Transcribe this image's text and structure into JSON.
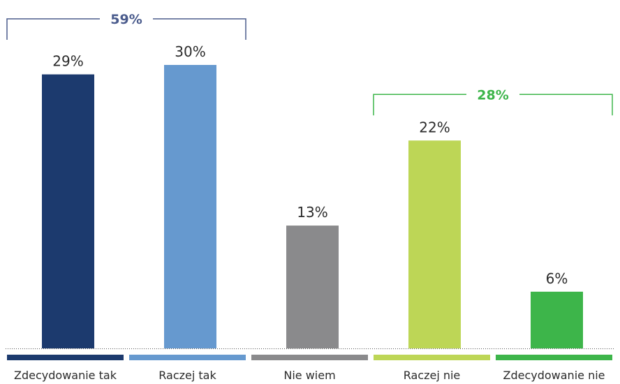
{
  "chart_data": {
    "type": "bar",
    "categories": [
      "Zdecydowanie tak",
      "Raczej tak",
      "Nie wiem",
      "Raczej nie",
      "Zdecydowanie nie"
    ],
    "values": [
      29,
      30,
      13,
      22,
      6
    ],
    "value_labels": [
      "29%",
      "30%",
      "13%",
      "22%",
      "6%"
    ],
    "colors": [
      "#1c3a6e",
      "#6699cf",
      "#8a8a8c",
      "#bdd656",
      "#3db54a"
    ],
    "ylim": [
      0,
      30
    ],
    "grid": false,
    "legend": "bottom",
    "groups": [
      {
        "label": "59%",
        "from": 0,
        "to": 1,
        "color": "#4a5b8c"
      },
      {
        "label": "28%",
        "from": 3,
        "to": 4,
        "color": "#3db54a"
      }
    ]
  }
}
